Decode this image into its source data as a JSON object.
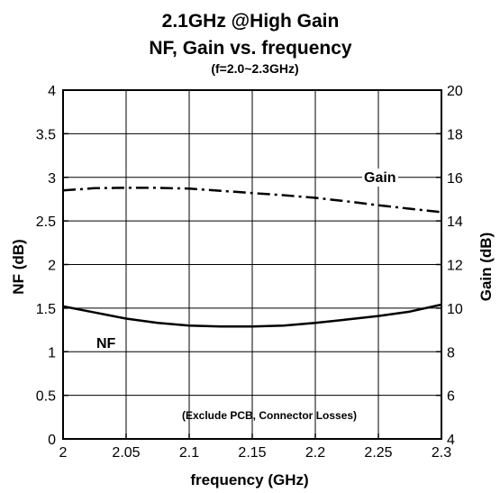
{
  "chart_data": {
    "type": "line",
    "title_line1": "2.1GHz @High Gain",
    "title_line2": "NF, Gain vs. frequency",
    "subtitle": "(f=2.0~2.3GHz)",
    "xlabel": "frequency (GHz)",
    "ylabel_left": "NF (dB)",
    "ylabel_right": "Gain (dB)",
    "xlim": [
      2.0,
      2.3
    ],
    "ylim_left": [
      0,
      4
    ],
    "ylim_right": [
      4,
      20
    ],
    "x_ticks": [
      "2",
      "2.05",
      "2.1",
      "2.15",
      "2.2",
      "2.25",
      "2.3"
    ],
    "y_left_ticks": [
      "0",
      "0.5",
      "1",
      "1.5",
      "2",
      "2.5",
      "3",
      "3.5",
      "4"
    ],
    "y_right_ticks": [
      "4",
      "6",
      "8",
      "10",
      "12",
      "14",
      "16",
      "18",
      "20"
    ],
    "grid": true,
    "annotation_nf": "NF",
    "annotation_gain": "Gain",
    "note": "(Exclude PCB, Connector Losses)",
    "series": [
      {
        "name": "NF",
        "axis": "left",
        "style": "solid",
        "x": [
          2.0,
          2.025,
          2.05,
          2.075,
          2.1,
          2.125,
          2.15,
          2.175,
          2.2,
          2.225,
          2.25,
          2.275,
          2.3
        ],
        "y": [
          1.52,
          1.45,
          1.38,
          1.33,
          1.3,
          1.29,
          1.29,
          1.3,
          1.33,
          1.37,
          1.41,
          1.46,
          1.54
        ]
      },
      {
        "name": "Gain",
        "axis": "right",
        "style": "dash-dot",
        "x": [
          2.0,
          2.025,
          2.05,
          2.075,
          2.1,
          2.125,
          2.15,
          2.175,
          2.2,
          2.225,
          2.25,
          2.275,
          2.3
        ],
        "y": [
          15.4,
          15.5,
          15.52,
          15.52,
          15.48,
          15.38,
          15.28,
          15.18,
          15.06,
          14.9,
          14.72,
          14.56,
          14.4
        ]
      }
    ]
  }
}
